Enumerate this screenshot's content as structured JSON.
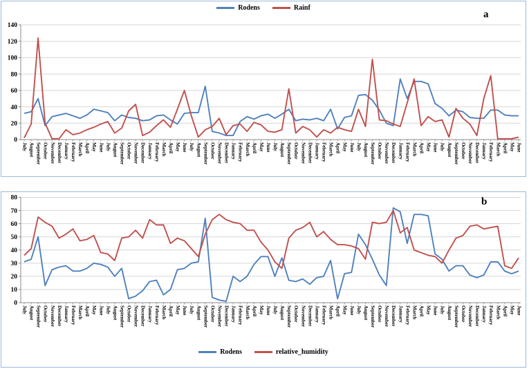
{
  "figure": {
    "background": "#ffffff",
    "panel_border_color": "#9db8dc",
    "gridline_color": "#d6d6d6",
    "axis_color": "#898989",
    "text_color": "#000000"
  },
  "x_labels": [
    "July",
    "August",
    "September",
    "October",
    "November",
    "December",
    "January",
    "February",
    "March",
    "April",
    "May",
    "June",
    "July",
    "August",
    "September",
    "October",
    "November",
    "December",
    "January",
    "February",
    "March",
    "April",
    "May",
    "June",
    "July",
    "August",
    "September",
    "October",
    "November",
    "December",
    "January",
    "February",
    "March",
    "April",
    "May",
    "June",
    "July",
    "August",
    "September",
    "October",
    "November",
    "December",
    "January",
    "February",
    "March",
    "April",
    "May",
    "June",
    "July",
    "August",
    "September",
    "October",
    "November",
    "December",
    "January",
    "February",
    "March",
    "April",
    "May",
    "June",
    "July",
    "August",
    "September",
    "October",
    "November",
    "December",
    "January",
    "February",
    "March",
    "April",
    "May",
    "June"
  ],
  "chart_data": [
    {
      "type": "line",
      "panel_label": "a",
      "legend_position": "top",
      "grid": true,
      "y_axis": {
        "min": 0,
        "max": 140,
        "step": 20,
        "ticks": [
          0,
          20,
          40,
          60,
          80,
          100,
          120,
          140
        ]
      },
      "legend": [
        {
          "label": "Rodens",
          "color": "#4F81BD"
        },
        {
          "label": "Rainf",
          "color": "#C0504D"
        }
      ],
      "series": [
        {
          "name": "Rodens",
          "color": "#4F81BD",
          "values": [
            32,
            34,
            50,
            17,
            28,
            30,
            32,
            29,
            26,
            30,
            37,
            35,
            33,
            23,
            30,
            27,
            26,
            23,
            24,
            29,
            30,
            24,
            19,
            32,
            33,
            33,
            65,
            10,
            8,
            5,
            5,
            22,
            28,
            25,
            29,
            31,
            26,
            31,
            37,
            23,
            25,
            24,
            26,
            23,
            37,
            13,
            27,
            29,
            54,
            55,
            48,
            36,
            20,
            17,
            74,
            50,
            71,
            71,
            68,
            44,
            38,
            29,
            36,
            34,
            27,
            26,
            26,
            36,
            36,
            30,
            29,
            29
          ]
        },
        {
          "name": "Rainf",
          "color": "#C0504D",
          "values": [
            2,
            19,
            124,
            20,
            1,
            1,
            12,
            6,
            8,
            12,
            15,
            19,
            22,
            8,
            14,
            35,
            43,
            5,
            9,
            17,
            24,
            15,
            37,
            60,
            29,
            3,
            12,
            16,
            26,
            6,
            17,
            19,
            10,
            21,
            18,
            10,
            9,
            12,
            62,
            8,
            16,
            12,
            3,
            12,
            8,
            15,
            12,
            10,
            37,
            16,
            98,
            24,
            23,
            19,
            16,
            45,
            74,
            17,
            28,
            22,
            24,
            3,
            38,
            26,
            19,
            5,
            50,
            78,
            1,
            1,
            1,
            3
          ]
        }
      ]
    },
    {
      "type": "line",
      "panel_label": "b",
      "legend_position": "bottom",
      "grid": true,
      "y_axis": {
        "min": 0,
        "max": 80,
        "step": 10,
        "ticks": [
          0,
          10,
          20,
          30,
          40,
          50,
          60,
          70,
          80
        ]
      },
      "legend": [
        {
          "label": "Rodens",
          "color": "#4F81BD"
        },
        {
          "label": "relative_humidity",
          "color": "#C0504D"
        }
      ],
      "series": [
        {
          "name": "Rodens",
          "color": "#4F81BD",
          "values": [
            31,
            33,
            50,
            13,
            25,
            27,
            28,
            24,
            24,
            26,
            30,
            29,
            27,
            20,
            26,
            3,
            5,
            9,
            16,
            17,
            6,
            10,
            25,
            26,
            30,
            31,
            64,
            4,
            2,
            1,
            20,
            16,
            20,
            29,
            35,
            35,
            20,
            34,
            17,
            16,
            18,
            14,
            19,
            20,
            32,
            3,
            22,
            23,
            52,
            44,
            33,
            21,
            13,
            72,
            69,
            45,
            67,
            67,
            66,
            37,
            33,
            24,
            28,
            28,
            21,
            19,
            21,
            31,
            31,
            24,
            22,
            24
          ]
        },
        {
          "name": "relative_humidity",
          "color": "#C0504D",
          "values": [
            36,
            41,
            65,
            61,
            58,
            49,
            52,
            56,
            47,
            48,
            51,
            38,
            37,
            32,
            49,
            50,
            55,
            49,
            63,
            59,
            59,
            45,
            49,
            47,
            41,
            35,
            52,
            63,
            67,
            63,
            61,
            60,
            55,
            55,
            46,
            40,
            31,
            26,
            49,
            55,
            57,
            61,
            50,
            54,
            48,
            44,
            44,
            43,
            41,
            33,
            61,
            60,
            61,
            70,
            53,
            57,
            40,
            38,
            36,
            35,
            30,
            40,
            49,
            51,
            58,
            59,
            56,
            57,
            58,
            28,
            26,
            34
          ]
        }
      ]
    }
  ]
}
